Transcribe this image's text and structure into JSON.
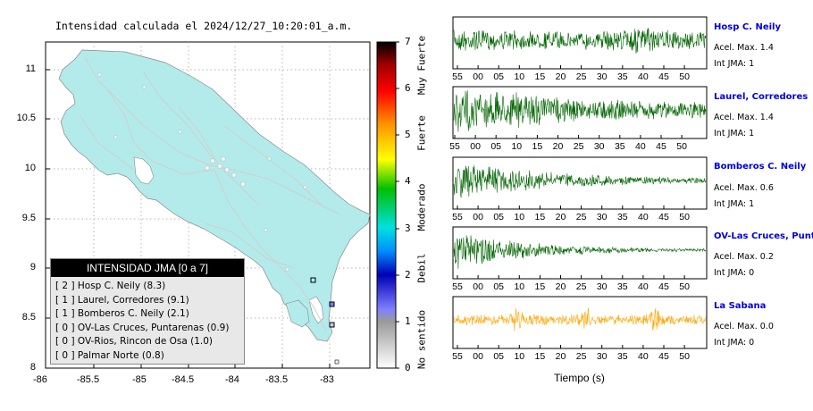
{
  "map": {
    "title": "Intensidad calculada el 2024/12/27_10:20:01_a.m.",
    "x_ticks": [
      "-86",
      "-85.5",
      "-85",
      "-84.5",
      "-84",
      "-83.5",
      "-83"
    ],
    "y_ticks": [
      "11",
      "10.5",
      "10",
      "9.5",
      "9",
      "8.5",
      "8"
    ]
  },
  "colorbar": {
    "ticks": [
      "0",
      "1",
      "2",
      "3",
      "4",
      "5",
      "6",
      "7"
    ],
    "categories": [
      "No sentido",
      "Debil",
      "Moderado",
      "Fuerte",
      "Muy Fuerte"
    ]
  },
  "legend": {
    "title": "INTENSIDAD JMA [0 a 7]",
    "rows": [
      "[ 2 ]  Hosp C. Neily (8.3)",
      "[ 1 ]  Laurel, Corredores (9.1)",
      "[ 1 ]  Bomberos C. Neily (2.1)",
      "[ 0 ]  OV-Las Cruces, Puntarenas (0.9)",
      "[ 0 ]  OV-Rios, Rincon de Osa (1.0)",
      "[ 0 ]  Palmar Norte (0.8)"
    ]
  },
  "stations": [
    {
      "name": "Hosp C. Neily",
      "accel": "Acel. Max. 1.4",
      "int": "Int JMA: 1"
    },
    {
      "name": "Laurel, Corredores",
      "accel": "Acel. Max. 1.4",
      "int": "Int JMA: 1"
    },
    {
      "name": "Bomberos C. Neily",
      "accel": "Acel. Max. 0.6",
      "int": "Int JMA: 1"
    },
    {
      "name": "OV-Las Cruces, Puntar",
      "accel": "Acel. Max. 0.2",
      "int": "Int JMA: 0"
    },
    {
      "name": "La Sabana",
      "accel": "Acel. Max. 0.0",
      "int": "Int JMA: 0"
    }
  ],
  "xlabel": "Tiempo (s)",
  "colors": {
    "trace_green": "#006400",
    "trace_orange": "#ffa500",
    "land": "#b3ebea",
    "station_name": "#0000e0"
  },
  "chart_data": [
    {
      "type": "map",
      "xlim": [
        -86,
        -82.6
      ],
      "ylim": [
        8,
        11.3
      ],
      "markers": [
        {
          "lon": -82.95,
          "lat": 8.65,
          "label": "Hosp C. Neily",
          "jma": 2
        },
        {
          "lon": -83.05,
          "lat": 8.9,
          "label": "Palmar Norte",
          "jma": 0
        },
        {
          "lon": -82.97,
          "lat": 8.44,
          "label": "Laurel, Corredores",
          "jma": 1
        }
      ]
    },
    {
      "type": "line",
      "x_ticks": [
        "55",
        "00",
        "05",
        "10",
        "15",
        "20",
        "25",
        "30",
        "35",
        "40",
        "45",
        "50"
      ],
      "xlabel": "Tiempo (s)",
      "series": [
        {
          "name": "Hosp C. Neily",
          "peak_accel": 1.4,
          "jma": 1
        },
        {
          "name": "Laurel, Corredores",
          "peak_accel": 1.4,
          "jma": 1
        },
        {
          "name": "Bomberos C. Neily",
          "peak_accel": 0.6,
          "jma": 1
        },
        {
          "name": "OV-Las Cruces, Puntar",
          "peak_accel": 0.2,
          "jma": 0
        },
        {
          "name": "La Sabana",
          "peak_accel": 0.0,
          "jma": 0
        }
      ]
    }
  ]
}
